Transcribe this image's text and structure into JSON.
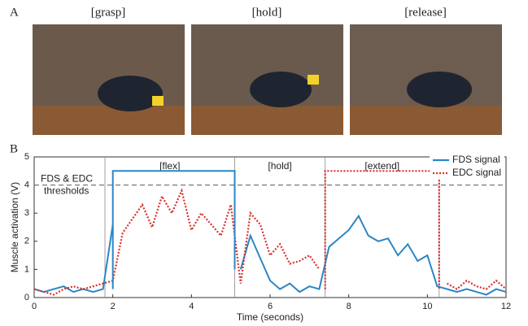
{
  "panel_a": {
    "label": "A",
    "photos": [
      "[grasp]",
      "[hold]",
      "[release]"
    ]
  },
  "panel_b": {
    "label": "B"
  },
  "chart_data": {
    "type": "line",
    "xlabel": "Time (seconds)",
    "ylabel": "Muscle activation (V)",
    "xlim": [
      0,
      12
    ],
    "xticks": [
      0,
      2,
      4,
      6,
      8,
      10,
      12
    ],
    "ylim": [
      0,
      5
    ],
    "yticks": [
      0,
      1,
      2,
      3,
      4,
      5
    ],
    "threshold": 4,
    "threshold_label": "FDS & EDC thresholds",
    "vlines": [
      1.8,
      5.1,
      7.4,
      10.3
    ],
    "phases": [
      "[flex]",
      "[hold]",
      "[extend]"
    ],
    "legend": "upper right",
    "x": [
      0,
      0.25,
      0.5,
      0.75,
      1,
      1.25,
      1.5,
      1.75,
      2,
      2.25,
      2.5,
      2.75,
      3,
      3.25,
      3.5,
      3.75,
      4,
      4.25,
      4.5,
      4.75,
      5,
      5.25,
      5.5,
      5.75,
      6,
      6.25,
      6.5,
      6.75,
      7,
      7.25,
      7.5,
      7.75,
      8,
      8.25,
      8.5,
      8.75,
      9,
      9.25,
      9.5,
      9.75,
      10,
      10.25,
      10.5,
      10.75,
      11,
      11.25,
      11.5,
      11.75,
      12
    ],
    "series": [
      {
        "name": "FDS signal",
        "color": "#2a86c6",
        "dash": "none",
        "values": [
          0.3,
          0.2,
          0.3,
          0.4,
          0.2,
          0.3,
          0.2,
          0.3,
          2.6,
          null,
          null,
          null,
          null,
          null,
          null,
          null,
          null,
          null,
          null,
          null,
          null,
          1.0,
          2.2,
          1.4,
          0.6,
          0.3,
          0.5,
          0.2,
          0.4,
          0.3,
          1.8,
          2.1,
          2.4,
          2.9,
          2.2,
          2.0,
          2.1,
          1.5,
          1.9,
          1.3,
          1.5,
          0.4,
          0.3,
          0.2,
          0.3,
          0.2,
          0.1,
          0.3,
          0.2
        ]
      },
      {
        "name": "EDC signal",
        "color": "#d9302c",
        "dash": "2 2",
        "values": [
          0.3,
          0.2,
          0.1,
          0.3,
          0.4,
          0.3,
          0.4,
          0.5,
          0.6,
          2.3,
          2.8,
          3.3,
          2.5,
          3.6,
          3.0,
          3.8,
          2.4,
          3.0,
          2.6,
          2.2,
          3.3,
          0.5,
          3.0,
          2.6,
          1.5,
          1.9,
          1.2,
          1.3,
          1.5,
          1.0,
          null,
          null,
          null,
          null,
          null,
          null,
          null,
          null,
          null,
          null,
          null,
          null,
          0.5,
          0.3,
          0.6,
          0.4,
          0.3,
          0.6,
          0.3
        ]
      },
      {
        "color": "#2a86c6",
        "dash": "none",
        "x": [
          2,
          2,
          5.1,
          5.1
        ],
        "values": [
          0.3,
          4.5,
          4.5,
          1.0
        ]
      },
      {
        "color": "#d9302c",
        "dash": "2 2",
        "x": [
          7.4,
          7.4,
          10.3,
          10.3
        ],
        "values": [
          0.3,
          4.5,
          4.5,
          0.3
        ]
      }
    ]
  }
}
